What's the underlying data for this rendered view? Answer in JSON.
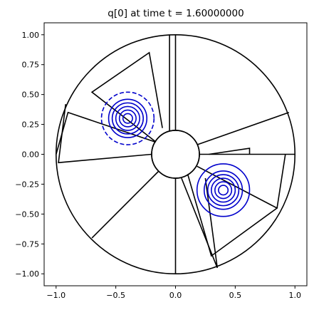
{
  "chart_data": {
    "type": "contour",
    "title": "q[0] at time t =      1.60000000",
    "xlabel": "",
    "ylabel": "",
    "xlim": [
      -1.1,
      1.1
    ],
    "ylim": [
      -1.1,
      1.1
    ],
    "xticks": [
      -1.0,
      -0.5,
      0.0,
      0.5,
      1.0
    ],
    "xtick_labels": [
      "−1.0",
      "−0.5",
      "0.0",
      "0.5",
      "1.0"
    ],
    "yticks": [
      1.0,
      0.75,
      0.5,
      0.25,
      0.0,
      -0.25,
      -0.5,
      -0.75,
      -1.0
    ],
    "ytick_labels": [
      "1.00",
      "0.75",
      "0.50",
      "0.25",
      "0.00",
      "−0.25",
      "−0.50",
      "−0.75",
      "−1.00"
    ],
    "grid": false,
    "domain": {
      "outer_radius": 1.0,
      "inner_radius": 0.2
    },
    "mesh_lines": [
      {
        "name": "sector-top-a",
        "points": [
          [
            0.0,
            1.0
          ],
          [
            0.0,
            0.2
          ]
        ]
      },
      {
        "name": "sector-top-b",
        "points": [
          [
            -0.05,
            1.0
          ],
          [
            -0.05,
            0.2
          ]
        ]
      },
      {
        "name": "upper-left-block",
        "points": [
          [
            -0.11,
            0.22
          ],
          [
            -0.22,
            0.85
          ],
          [
            -0.7,
            0.52
          ],
          [
            -0.16,
            0.1
          ]
        ]
      },
      {
        "name": "left-block",
        "points": [
          [
            -0.16,
            0.1
          ],
          [
            -0.9,
            0.35
          ],
          [
            -1.0,
            0.0
          ]
        ]
      },
      {
        "name": "left-lower-block",
        "points": [
          [
            -0.2,
            0.0
          ],
          [
            -0.98,
            -0.07
          ],
          [
            -0.92,
            0.42
          ]
        ]
      },
      {
        "name": "diag-left-low",
        "points": [
          [
            -0.7,
            -0.7
          ],
          [
            -0.14,
            -0.14
          ]
        ]
      },
      {
        "name": "bottom-block",
        "points": [
          [
            0.0,
            -0.2
          ],
          [
            0.0,
            -1.0
          ]
        ]
      },
      {
        "name": "bottom-right-block",
        "points": [
          [
            0.05,
            -0.2
          ],
          [
            0.35,
            -0.95
          ],
          [
            0.25,
            -0.2
          ]
        ]
      },
      {
        "name": "lower-right-wedge",
        "points": [
          [
            0.1,
            -0.16
          ],
          [
            0.3,
            -0.85
          ],
          [
            0.85,
            -0.45
          ],
          [
            0.18,
            -0.1
          ]
        ]
      },
      {
        "name": "right-block",
        "points": [
          [
            0.2,
            0.0
          ],
          [
            1.0,
            0.0
          ]
        ]
      },
      {
        "name": "right-top-line",
        "points": [
          [
            0.95,
            0.35
          ],
          [
            0.18,
            0.08
          ]
        ]
      },
      {
        "name": "right-small-cell",
        "points": [
          [
            0.28,
            0.0
          ],
          [
            0.62,
            0.05
          ],
          [
            0.62,
            0.0
          ]
        ]
      },
      {
        "name": "right-lower-arc-edge",
        "points": [
          [
            0.92,
            0.0
          ],
          [
            0.85,
            -0.45
          ]
        ]
      }
    ],
    "series": [
      {
        "center": [
          -0.4,
          0.3
        ],
        "levels": [
          0.04,
          0.07,
          0.1,
          0.13,
          0.16,
          0.22
        ],
        "dashed_outer": true,
        "color": "#0000cc"
      },
      {
        "center": [
          0.4,
          -0.3
        ],
        "levels": [
          0.04,
          0.07,
          0.1,
          0.13,
          0.16,
          0.22
        ],
        "dashed_outer": false,
        "color": "#0000cc"
      }
    ],
    "colors": {
      "mesh": "#000000",
      "contour": "#0000cc",
      "axes": "#000000"
    }
  }
}
